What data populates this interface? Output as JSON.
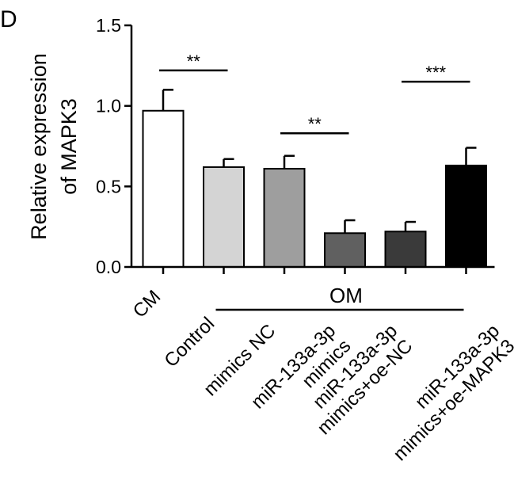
{
  "chart_data": {
    "type": "bar",
    "panel_label": "D",
    "ylabel_line1": "Relative expression",
    "ylabel_line2": "of MAPK3",
    "ylim": [
      0,
      1.5
    ],
    "yticks": [
      "0.0",
      "0.5",
      "1.0",
      "1.5"
    ],
    "ytick_values": [
      0,
      0.5,
      1.0,
      1.5
    ],
    "grid": false,
    "categories": [
      "CM",
      "Control",
      "mimics NC",
      "miR-133a-3p mimics",
      "miR-133a-3p mimics+oe-NC",
      "miR-133a-3p mimics+oe-MAPK3"
    ],
    "category_lines": [
      [
        "CM"
      ],
      [
        "Control"
      ],
      [
        "mimics NC"
      ],
      [
        "miR-133a-3p",
        "mimics"
      ],
      [
        "miR-133a-3p",
        "mimics+oe-NC"
      ],
      [
        "miR-133a-3p",
        "mimics+oe-MAPK3"
      ]
    ],
    "values": [
      0.97,
      0.62,
      0.61,
      0.21,
      0.22,
      0.63
    ],
    "errors": [
      0.13,
      0.05,
      0.08,
      0.08,
      0.06,
      0.11
    ],
    "bar_colors": [
      "#ffffff",
      "#d4d4d4",
      "#9e9e9e",
      "#606060",
      "#3a3a3a",
      "#000000"
    ],
    "group_label": "OM",
    "group_span": [
      1,
      5
    ],
    "significance": [
      {
        "from": 0,
        "to": 1,
        "label": "**",
        "y": 1.22
      },
      {
        "from": 2,
        "to": 3,
        "label": "**",
        "y": 0.83
      },
      {
        "from": 4,
        "to": 5,
        "label": "***",
        "y": 1.15
      }
    ]
  }
}
